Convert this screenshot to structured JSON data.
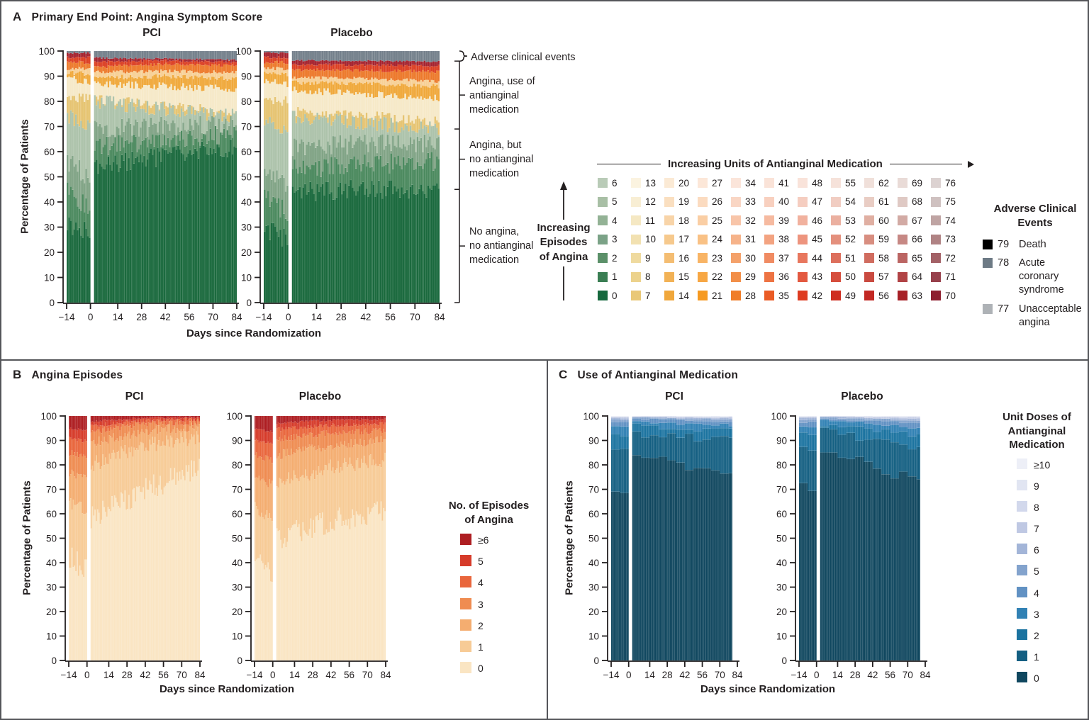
{
  "figure": {
    "panelA": {
      "letter": "A",
      "title": "Primary End Point: Angina Symptom Score",
      "groups": [
        "PCI",
        "Placebo"
      ],
      "ylabel": "Percentage of Patients",
      "xlabel": "Days since Randomization",
      "annotations": {
        "adverse": "Adverse clinical events",
        "use_med": "Angina, use of\nantianginal\nmedication",
        "no_med": "Angina, but\nno antianginal\nmedication",
        "no_angina": "No angina,\nno antianginal\nmedication"
      },
      "episodes_arrow": "Increasing\nEpisodes\nof Angina",
      "units_arrow": "Increasing Units of Antianginal Medication",
      "score_grid_columns": [
        [
          [
            "0",
            "#17693e"
          ],
          [
            "1",
            "#3a7e53"
          ],
          [
            "2",
            "#5b9069"
          ],
          [
            "3",
            "#7ba287"
          ],
          [
            "4",
            "#93b295"
          ],
          [
            "5",
            "#a8bfa5"
          ],
          [
            "6",
            "#b9cbb7"
          ]
        ],
        [
          [
            "7",
            "#e9c878"
          ],
          [
            "8",
            "#ecd28c"
          ],
          [
            "9",
            "#efda9f"
          ],
          [
            "10",
            "#f2e1b1"
          ],
          [
            "11",
            "#f5e8c3"
          ],
          [
            "12",
            "#f8eed4"
          ],
          [
            "13",
            "#fbf3e0"
          ]
        ],
        [
          [
            "14",
            "#f0a73b"
          ],
          [
            "15",
            "#f2b256"
          ],
          [
            "16",
            "#f4bd72"
          ],
          [
            "17",
            "#f6c98d"
          ],
          [
            "18",
            "#f8d4a8"
          ],
          [
            "19",
            "#fadfc0"
          ],
          [
            "20",
            "#fbead5"
          ]
        ],
        [
          [
            "21",
            "#f69a21"
          ],
          [
            "22",
            "#f7a744"
          ],
          [
            "23",
            "#f8b465"
          ],
          [
            "24",
            "#f9c185"
          ],
          [
            "25",
            "#facea4"
          ],
          [
            "26",
            "#fbdbc0"
          ],
          [
            "27",
            "#fce7d8"
          ]
        ],
        [
          [
            "28",
            "#f07d28"
          ],
          [
            "29",
            "#f28f49"
          ],
          [
            "30",
            "#f4a16a"
          ],
          [
            "31",
            "#f6b38a"
          ],
          [
            "32",
            "#f8c5a9"
          ],
          [
            "33",
            "#f9d6c4"
          ],
          [
            "34",
            "#fbe5da"
          ]
        ],
        [
          [
            "35",
            "#ea5b25"
          ],
          [
            "36",
            "#ed7343"
          ],
          [
            "37",
            "#f08b62"
          ],
          [
            "38",
            "#f3a381"
          ],
          [
            "39",
            "#f6baa0"
          ],
          [
            "40",
            "#f8d0bf"
          ],
          [
            "41",
            "#fae3d8"
          ]
        ],
        [
          [
            "42",
            "#de3b21"
          ],
          [
            "43",
            "#e35940"
          ],
          [
            "44",
            "#e8775e"
          ],
          [
            "45",
            "#ed947e"
          ],
          [
            "46",
            "#f1b19e"
          ],
          [
            "47",
            "#f5cdc0"
          ],
          [
            "48",
            "#f9e3da"
          ]
        ],
        [
          [
            "49",
            "#cf2d20"
          ],
          [
            "50",
            "#d64e3d"
          ],
          [
            "51",
            "#dd6f5c"
          ],
          [
            "52",
            "#e4907d"
          ],
          [
            "53",
            "#ebb0a0"
          ],
          [
            "54",
            "#f1cdc2"
          ],
          [
            "55",
            "#f6e2da"
          ]
        ],
        [
          [
            "56",
            "#c22823"
          ],
          [
            "57",
            "#c94a40"
          ],
          [
            "58",
            "#d06c5f"
          ],
          [
            "59",
            "#d88e80"
          ],
          [
            "60",
            "#e0afa2"
          ],
          [
            "61",
            "#e9cdc4"
          ],
          [
            "62",
            "#f0e0da"
          ]
        ],
        [
          [
            "63",
            "#a72026"
          ],
          [
            "64",
            "#b14345"
          ],
          [
            "65",
            "#bb6563"
          ],
          [
            "66",
            "#c68884"
          ],
          [
            "67",
            "#d2aaa4"
          ],
          [
            "68",
            "#dfc9c4"
          ],
          [
            "69",
            "#e9dbd7"
          ]
        ],
        [
          [
            "70",
            "#8d1e2e"
          ],
          [
            "71",
            "#97404b"
          ],
          [
            "72",
            "#a36166"
          ],
          [
            "73",
            "#b08384"
          ],
          [
            "74",
            "#bfa4a3"
          ],
          [
            "75",
            "#cfc1c0"
          ],
          [
            "76",
            "#dcd2d1"
          ]
        ]
      ],
      "adverse_legend": {
        "title": "Adverse Clinical\nEvents",
        "items": [
          {
            "num": "79",
            "label": "Death",
            "color": "#000000"
          },
          {
            "num": "78",
            "label": "Acute coronary syndrome",
            "color": "#6d7a85"
          },
          {
            "num": "77",
            "label": "Unacceptable angina",
            "color": "#aeb2b6"
          }
        ]
      }
    },
    "panelB": {
      "letter": "B",
      "title": "Angina Episodes",
      "groups": [
        "PCI",
        "Placebo"
      ],
      "ylabel": "Percentage of Patients",
      "xlabel": "Days since Randomization",
      "legend": {
        "title": "No. of Episodes\nof Angina",
        "items": [
          {
            "label": "≥6",
            "color": "#ae1e22"
          },
          {
            "label": "5",
            "color": "#d63b2a"
          },
          {
            "label": "4",
            "color": "#e9663c"
          },
          {
            "label": "3",
            "color": "#ef8c51"
          },
          {
            "label": "2",
            "color": "#f4ad70"
          },
          {
            "label": "1",
            "color": "#f7cb96"
          },
          {
            "label": "0",
            "color": "#fae5c3"
          }
        ]
      }
    },
    "panelC": {
      "letter": "C",
      "title": "Use of Antianginal Medication",
      "groups": [
        "PCI",
        "Placebo"
      ],
      "ylabel": "Percentage of Patients",
      "xlabel": "Days since Randomization",
      "legend": {
        "title": "Unit Doses of\nAntianginal\nMedication",
        "items": [
          {
            "label": "≥10",
            "color": "#edeff7"
          },
          {
            "label": "9",
            "color": "#e1e5f2"
          },
          {
            "label": "8",
            "color": "#d2d8ec"
          },
          {
            "label": "7",
            "color": "#bfc8e3"
          },
          {
            "label": "6",
            "color": "#a3b5d8"
          },
          {
            "label": "5",
            "color": "#83a3cd"
          },
          {
            "label": "4",
            "color": "#6191c3"
          },
          {
            "label": "3",
            "color": "#3181b4"
          },
          {
            "label": "2",
            "color": "#1b73a0"
          },
          {
            "label": "1",
            "color": "#145f82"
          },
          {
            "label": "0",
            "color": "#10475f"
          }
        ]
      }
    }
  },
  "chart_data": [
    {
      "id": "A",
      "type": "bar",
      "subtype": "stacked-daily-percent",
      "title": "Primary End Point: Angina Symptom Score",
      "xlabel": "Days since Randomization",
      "ylabel": "Percentage of Patients",
      "x_ticks": [
        -14,
        0,
        14,
        28,
        42,
        56,
        70,
        84
      ],
      "y_ticks": [
        0,
        10,
        20,
        30,
        40,
        50,
        60,
        70,
        80,
        90,
        100
      ],
      "ylim": [
        0,
        100
      ],
      "x_range_days": [
        -14,
        84
      ],
      "end_day": 84,
      "weekly": false,
      "layers": [
        "score 0 (no angina, no med)",
        "score 1-2",
        "score 3-4",
        "score 5-6",
        "score 7 (gold)",
        "score 8-13 (cream)",
        "score 14-21 (amber)",
        "score 22-27 (peach)",
        "score 28-35 (orange)",
        "score 36-48 (red)",
        "score 49-76 (dark red)",
        "score 77-79 adverse events (gray)"
      ],
      "colors": [
        "#1b6a3e",
        "#4c8a5f",
        "#81a486",
        "#adc3ab",
        "#e6c472",
        "#f6e9c8",
        "#f0a93c",
        "#f7d096",
        "#ed7a2c",
        "#dc4024",
        "#a52430",
        "#75818c"
      ],
      "control_days": [
        -14,
        -1,
        1,
        42,
        84
      ],
      "jitter": [
        4,
        4,
        4,
        3,
        2,
        1.5,
        0.9,
        0.7,
        0.6,
        0.5,
        0.35,
        0
      ],
      "envelopes": {
        "PCI": [
          [
            32,
            27,
            55,
            58,
            62
          ],
          [
            44,
            38,
            62,
            65,
            67
          ],
          [
            56,
            50,
            69,
            70,
            71
          ],
          [
            74,
            71,
            80,
            77,
            74
          ],
          [
            82,
            81,
            81,
            78.5,
            75.5
          ],
          [
            89,
            88,
            87,
            86,
            85
          ],
          [
            91.5,
            91,
            89.5,
            90,
            89
          ],
          [
            93,
            93,
            91.5,
            92,
            91.5
          ],
          [
            95.5,
            95.5,
            93.5,
            94.8,
            94.2
          ],
          [
            97.5,
            97.5,
            95.8,
            96.2,
            95.7
          ],
          [
            99.3,
            99.3,
            97.3,
            97,
            96.5
          ],
          [
            100,
            100,
            100,
            100,
            100
          ]
        ],
        "Placebo": [
          [
            30,
            25,
            44,
            45,
            45
          ],
          [
            42,
            36,
            53,
            55,
            56
          ],
          [
            54,
            47,
            62,
            63,
            63
          ],
          [
            72,
            68,
            74,
            71.5,
            69
          ],
          [
            81,
            80,
            76,
            74.5,
            72
          ],
          [
            88,
            87,
            84.5,
            83,
            81.5
          ],
          [
            91,
            90.5,
            87.5,
            87,
            86
          ],
          [
            93,
            93,
            89.5,
            89,
            88
          ],
          [
            95.5,
            95.5,
            92.5,
            92.3,
            91.8
          ],
          [
            97.5,
            97.5,
            94.5,
            94.5,
            94
          ],
          [
            99.3,
            99.3,
            96.3,
            96.2,
            95.8
          ],
          [
            100,
            100,
            100,
            100,
            100
          ]
        ]
      },
      "annotation_band_boundaries_pct": [
        0,
        45,
        69,
        96,
        100
      ]
    },
    {
      "id": "B",
      "type": "bar",
      "subtype": "stacked-daily-percent",
      "title": "Angina Episodes",
      "xlabel": "Days since Randomization",
      "ylabel": "Percentage of Patients",
      "x_ticks": [
        -14,
        0,
        14,
        28,
        42,
        56,
        70,
        84
      ],
      "y_ticks": [
        0,
        10,
        20,
        30,
        40,
        50,
        60,
        70,
        80,
        90,
        100
      ],
      "ylim": [
        0,
        100
      ],
      "x_range_days": [
        -14,
        84
      ],
      "end_day": 84,
      "weekly": false,
      "layers": [
        "0 episodes",
        "1",
        "2",
        "3",
        "4",
        "5",
        "≥6 episodes"
      ],
      "colors": [
        "#fae5c3",
        "#f7cb96",
        "#f4ad70",
        "#ef8c51",
        "#e9663c",
        "#d63b2a",
        "#ae1e22"
      ],
      "control_days": [
        -14,
        -1,
        1,
        42,
        84
      ],
      "jitter": [
        5,
        3.2,
        2,
        1.3,
        0.8,
        0.5,
        0
      ],
      "envelopes": {
        "PCI": [
          [
            42,
            37,
            58,
            70,
            78
          ],
          [
            65,
            61,
            80,
            88,
            91.5
          ],
          [
            77,
            74,
            89,
            94,
            95.5
          ],
          [
            85,
            83,
            93.5,
            96.7,
            97.5
          ],
          [
            91,
            89.5,
            96,
            98.2,
            98.7
          ],
          [
            95,
            94,
            97.8,
            99.2,
            99.4
          ],
          [
            100,
            100,
            100,
            100,
            100
          ]
        ],
        "Placebo": [
          [
            40,
            35,
            50,
            57,
            61
          ],
          [
            63,
            59,
            73,
            79,
            82
          ],
          [
            75,
            72,
            84,
            88,
            90
          ],
          [
            84,
            82,
            90.5,
            93,
            94
          ],
          [
            90,
            88.5,
            94.5,
            96.2,
            96.8
          ],
          [
            94.5,
            93.5,
            97,
            98.3,
            98.6
          ],
          [
            100,
            100,
            100,
            100,
            100
          ]
        ]
      }
    },
    {
      "id": "C",
      "type": "bar",
      "subtype": "stacked-daily-percent",
      "title": "Use of Antianginal Medication",
      "xlabel": "Days since Randomization",
      "ylabel": "Percentage of Patients",
      "x_ticks": [
        -14,
        0,
        14,
        28,
        42,
        56,
        70,
        84
      ],
      "y_ticks": [
        0,
        10,
        20,
        30,
        40,
        50,
        60,
        70,
        80,
        90,
        100
      ],
      "ylim": [
        0,
        100
      ],
      "x_range_days": [
        -14,
        80
      ],
      "end_day": 80,
      "weekly": true,
      "layers": [
        "0 doses",
        "1",
        "2",
        "3",
        "4",
        "5",
        "6",
        "7",
        "8",
        "9",
        "≥10 doses"
      ],
      "colors": [
        "#10475f",
        "#145f82",
        "#1b73a0",
        "#3181b4",
        "#6191c3",
        "#83a3cd",
        "#a3b5d8",
        "#bfc8e3",
        "#d2d8ec",
        "#e1e5f2",
        "#edeff7"
      ],
      "control_days": [
        -14,
        -1,
        1,
        42,
        84
      ],
      "jitter": [
        2.5,
        1.5,
        1,
        0.6,
        0.4,
        0.3,
        0.25,
        0.2,
        0.15,
        0.1,
        0
      ],
      "envelopes": {
        "PCI": [
          [
            72,
            68,
            85,
            80,
            76
          ],
          [
            87,
            85,
            93,
            91.5,
            90
          ],
          [
            93,
            92,
            96.2,
            95,
            94
          ],
          [
            96,
            95.5,
            98,
            97,
            96.3
          ],
          [
            97.5,
            97.2,
            98.9,
            98.3,
            97.8
          ],
          [
            98.5,
            98.3,
            99.4,
            98.9,
            98.6
          ],
          [
            99.1,
            99,
            99.65,
            99.3,
            99.1
          ],
          [
            99.5,
            99.4,
            99.8,
            99.55,
            99.4
          ],
          [
            99.75,
            99.7,
            99.9,
            99.75,
            99.65
          ],
          [
            99.9,
            99.87,
            99.96,
            99.9,
            99.85
          ],
          [
            100,
            100,
            100,
            100,
            100
          ]
        ],
        "Placebo": [
          [
            73,
            69,
            88,
            79,
            72
          ],
          [
            88,
            86,
            94,
            90,
            86
          ],
          [
            93.5,
            92.5,
            96.5,
            94.5,
            92
          ],
          [
            96.2,
            95.7,
            98.1,
            96.8,
            95
          ],
          [
            97.6,
            97.3,
            99,
            98.1,
            96.9
          ],
          [
            98.6,
            98.4,
            99.45,
            98.8,
            98
          ],
          [
            99.2,
            99.05,
            99.68,
            99.25,
            98.8
          ],
          [
            99.55,
            99.45,
            99.82,
            99.55,
            99.3
          ],
          [
            99.78,
            99.72,
            99.91,
            99.75,
            99.6
          ],
          [
            99.91,
            99.88,
            99.96,
            99.89,
            99.82
          ],
          [
            100,
            100,
            100,
            100,
            100
          ]
        ]
      }
    }
  ]
}
